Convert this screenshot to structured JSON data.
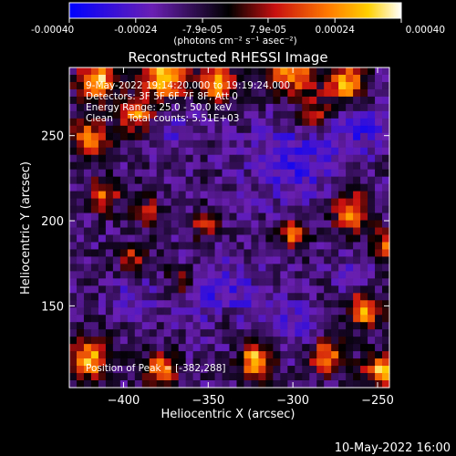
{
  "colorbar": {
    "tick_labels": [
      "-0.00040",
      "-0.00024",
      "-7.9e-05",
      "7.9e-05",
      "0.00024",
      "0.00040"
    ],
    "tick_values": [
      -0.0004,
      -0.00024,
      -7.9e-05,
      7.9e-05,
      0.00024,
      0.0004
    ],
    "range": [
      -0.0004,
      0.0004
    ],
    "units": "(photons cm⁻² s⁻¹ asec⁻²)"
  },
  "chart_data": {
    "type": "heatmap",
    "title": "Reconstructed RHESSI Image",
    "xlabel": "Heliocentric X (arcsec)",
    "ylabel": "Heliocentric Y (arcsec)",
    "xlim": [
      -432,
      -243
    ],
    "ylim": [
      102,
      290
    ],
    "x_ticks": [
      -400,
      -350,
      -300,
      -250
    ],
    "x_tick_labels": [
      "−400",
      "−350",
      "−300",
      "−250"
    ],
    "y_ticks": [
      150,
      200,
      250
    ],
    "y_tick_labels": [
      "150",
      "200",
      "250"
    ],
    "colormap": "blue-purple-black-red-orange-yellow-white",
    "annotations": [
      "9-May-2022 19:14:20.000 to 19:19:24.000",
      "Detectors: 3F 5F 6F 7F 8F, Att 0",
      "Energy Range: 25.0 - 50.0 keV",
      "Clean     Total counts: 5.51E+03"
    ],
    "peak_label": "Position of Peak = [-382,288]",
    "peak_position": [
      -382,
      288
    ],
    "grid": false,
    "grid_rows": 44,
    "grid_cols": 44,
    "emission_blobs": [
      {
        "x": -415,
        "y": 282,
        "a": 0.95,
        "s": 8
      },
      {
        "x": -375,
        "y": 284,
        "a": 1.0,
        "s": 9
      },
      {
        "x": -345,
        "y": 280,
        "a": 0.8,
        "s": 8
      },
      {
        "x": -300,
        "y": 287,
        "a": 0.75,
        "s": 10
      },
      {
        "x": -268,
        "y": 280,
        "a": 0.85,
        "s": 8
      },
      {
        "x": -392,
        "y": 262,
        "a": 0.75,
        "s": 7
      },
      {
        "x": -420,
        "y": 248,
        "a": 0.7,
        "s": 8
      },
      {
        "x": -288,
        "y": 262,
        "a": 0.55,
        "s": 7
      },
      {
        "x": -412,
        "y": 215,
        "a": 0.6,
        "s": 7
      },
      {
        "x": -385,
        "y": 205,
        "a": 0.45,
        "s": 6
      },
      {
        "x": -352,
        "y": 198,
        "a": 0.45,
        "s": 6
      },
      {
        "x": -300,
        "y": 192,
        "a": 0.7,
        "s": 6
      },
      {
        "x": -265,
        "y": 205,
        "a": 0.75,
        "s": 8
      },
      {
        "x": -245,
        "y": 185,
        "a": 0.6,
        "s": 7
      },
      {
        "x": -395,
        "y": 178,
        "a": 0.45,
        "s": 6
      },
      {
        "x": -365,
        "y": 165,
        "a": 0.4,
        "s": 6
      },
      {
        "x": -258,
        "y": 148,
        "a": 0.85,
        "s": 7
      },
      {
        "x": -420,
        "y": 118,
        "a": 0.9,
        "s": 8
      },
      {
        "x": -378,
        "y": 112,
        "a": 0.75,
        "s": 7
      },
      {
        "x": -322,
        "y": 118,
        "a": 0.95,
        "s": 7
      },
      {
        "x": -280,
        "y": 120,
        "a": 0.7,
        "s": 7
      },
      {
        "x": -248,
        "y": 112,
        "a": 0.85,
        "s": 7
      },
      {
        "x": -340,
        "y": 140,
        "a": 0.35,
        "s": 6
      }
    ],
    "absorption_blobs": [
      {
        "x": -300,
        "y": 235,
        "a": 0.75,
        "s": 18
      },
      {
        "x": -260,
        "y": 255,
        "a": 0.7,
        "s": 12
      },
      {
        "x": -340,
        "y": 155,
        "a": 0.7,
        "s": 16
      },
      {
        "x": -300,
        "y": 140,
        "a": 0.6,
        "s": 10
      },
      {
        "x": -370,
        "y": 255,
        "a": 0.5,
        "s": 12
      },
      {
        "x": -395,
        "y": 155,
        "a": 0.45,
        "s": 9
      },
      {
        "x": -265,
        "y": 168,
        "a": 0.5,
        "s": 9
      }
    ]
  },
  "footer": {
    "timestamp": "10-May-2022 16:00"
  }
}
